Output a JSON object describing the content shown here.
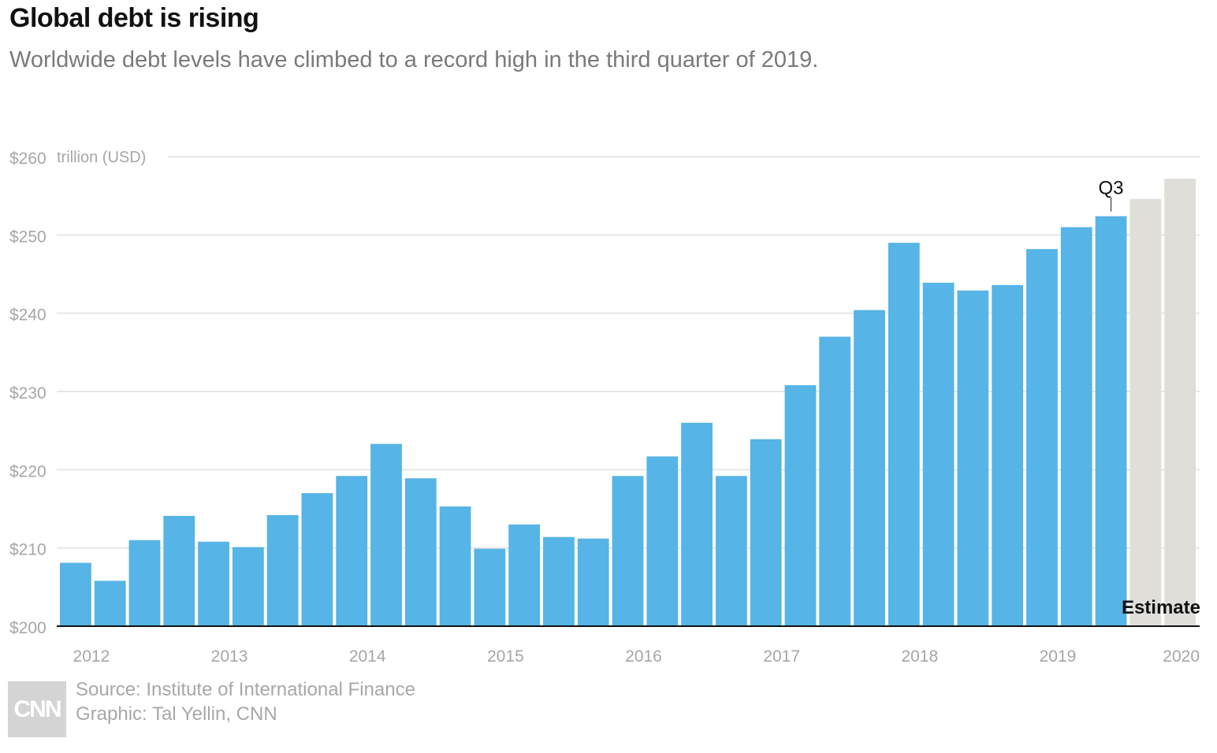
{
  "title": "Global debt is rising",
  "subtitle": "Worldwide debt levels have climbed to a record high in the third quarter of 2019.",
  "source": "Source: Institute of International Finance",
  "credit": "Graphic: Tal Yellin, CNN",
  "logo_text": "CNN",
  "colors": {
    "actual": "#56b4e6",
    "estimate": "#e0ded9",
    "grid": "#e6e6e6",
    "axis": "#111111",
    "tick_text": "#a6a6a6"
  },
  "chart_data": {
    "type": "bar",
    "ylabel": "trillion (USD)",
    "ylim": [
      200,
      260
    ],
    "y_ticks": [
      200,
      210,
      220,
      230,
      240,
      250,
      260
    ],
    "y_tick_labels": [
      "$200",
      "$210",
      "$220",
      "$230",
      "$240",
      "$250",
      "$260"
    ],
    "x_tick_labels": [
      "2012",
      "2013",
      "2014",
      "2015",
      "2016",
      "2017",
      "2018",
      "2019",
      "2020"
    ],
    "grid": true,
    "series": [
      {
        "values": [
          208.1,
          205.8,
          211.0,
          214.1,
          210.8,
          210.1,
          214.2,
          217.0,
          219.2,
          223.3,
          218.9,
          215.3,
          209.9,
          213.0,
          211.4,
          211.2,
          219.2,
          221.7,
          226.0,
          219.2,
          223.9,
          230.8,
          237.0,
          240.4,
          249.0,
          243.9,
          242.9,
          243.6,
          248.2,
          251.0,
          252.4
        ]
      },
      {
        "values": [
          254.6,
          257.2
        ]
      }
    ],
    "annotations": [
      {
        "text": "Q3"
      },
      {
        "text": "Estimate"
      }
    ]
  }
}
